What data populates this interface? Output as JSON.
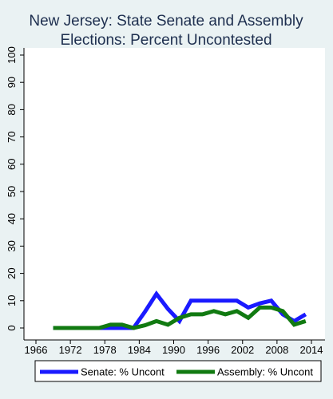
{
  "chart_data": {
    "type": "line",
    "title_lines": [
      "New Jersey: State Senate and Assembly",
      "Elections: Percent Uncontested"
    ],
    "xlabel": "",
    "ylabel": "",
    "xlim": [
      1964,
      2015
    ],
    "ylim": [
      0,
      100
    ],
    "x_ticks": [
      1966,
      1972,
      1978,
      1984,
      1990,
      1996,
      2002,
      2008,
      2014
    ],
    "y_ticks": [
      0,
      10,
      20,
      30,
      40,
      50,
      60,
      70,
      80,
      90,
      100
    ],
    "grid": false,
    "legend_position": "bottom",
    "series": [
      {
        "name": "Senate: % Uncont",
        "color": "#1a1aff",
        "x": [
          1969,
          1971,
          1973,
          1975,
          1977,
          1979,
          1981,
          1983,
          1985,
          1987,
          1989,
          1991,
          1993,
          1995,
          1997,
          1999,
          2001,
          2003,
          2005,
          2007,
          2009,
          2011,
          2013
        ],
        "y": [
          0,
          0,
          0,
          0,
          0,
          0,
          0,
          0,
          6,
          12.5,
          7,
          2.5,
          10,
          10,
          10,
          10,
          10,
          7.5,
          9,
          10,
          5,
          2.5,
          5
        ]
      },
      {
        "name": "Assembly: % Uncont",
        "color": "#117a11",
        "x": [
          1969,
          1971,
          1973,
          1975,
          1977,
          1979,
          1981,
          1983,
          1985,
          1987,
          1989,
          1991,
          1993,
          1995,
          1997,
          1999,
          2001,
          2003,
          2005,
          2007,
          2009,
          2011,
          2013
        ],
        "y": [
          0,
          0,
          0,
          0,
          0,
          1.2,
          1.2,
          0,
          1,
          2.5,
          1.2,
          3.7,
          5,
          5,
          6.2,
          5,
          6.2,
          3.7,
          7.5,
          7.5,
          6.2,
          1.2,
          2.5
        ]
      }
    ]
  }
}
